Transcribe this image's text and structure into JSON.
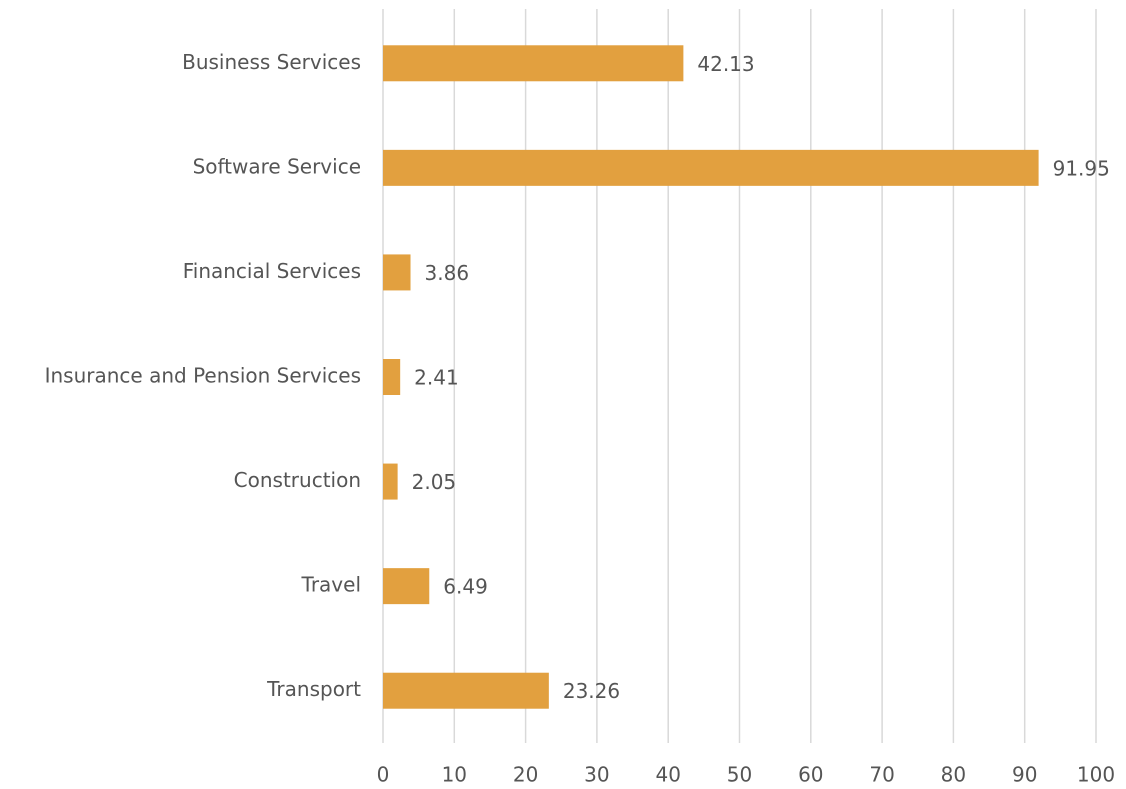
{
  "chart_data": {
    "type": "bar",
    "orientation": "horizontal",
    "categories": [
      "Business Services",
      "Software Service",
      "Financial Services",
      "Insurance and Pension Services",
      "Construction",
      "Travel",
      "Transport"
    ],
    "values": [
      42.13,
      91.95,
      3.86,
      2.41,
      2.05,
      6.49,
      23.26
    ],
    "color": "#e2a03f",
    "xlim": [
      0,
      100
    ],
    "xticks": [
      0,
      10,
      20,
      30,
      40,
      50,
      60,
      70,
      80,
      90,
      100
    ],
    "grid": true
  }
}
